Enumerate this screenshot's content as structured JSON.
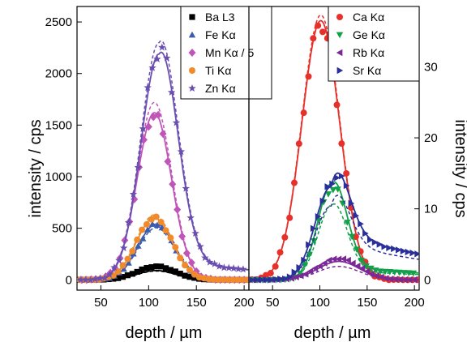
{
  "chart_data": [
    {
      "type": "scatter",
      "panel": "left",
      "xlabel": "depth / µm",
      "ylabel": "intensity / cps",
      "xlim": [
        25,
        205
      ],
      "ylim": [
        -100,
        2650
      ],
      "xticks": [
        50,
        100,
        150,
        200
      ],
      "yticks": [
        0,
        500,
        1000,
        1500,
        2000,
        2500
      ],
      "legend_position": "top-center",
      "series": [
        {
          "name": "Ba L3",
          "color": "#000000",
          "marker": "square",
          "center": 108,
          "width": 20,
          "tail": 0.0,
          "peak_pts": 130,
          "peak_fit": 90,
          "peak_fit2": 85
        },
        {
          "name": "Fe Kα",
          "color": "#3a5bb0",
          "marker": "triangle-up",
          "center": 108,
          "width": 19,
          "tail": 0.0,
          "peak_pts": 540,
          "peak_fit": 540,
          "peak_fit2": 505
        },
        {
          "name": "Mn Kα / 5",
          "color": "#c054b8",
          "marker": "diamond",
          "center": 106,
          "width": 18,
          "tail": 0.0,
          "peak_pts": 1600,
          "peak_fit": 1620,
          "peak_fit2": 1720
        },
        {
          "name": "Ti Kα",
          "color": "#f08a2a",
          "marker": "circle",
          "center": 106,
          "width": 19,
          "tail": 0.0,
          "peak_pts": 600,
          "peak_fit": 600,
          "peak_fit2": 630
        },
        {
          "name": "Zn Kα",
          "color": "#6a4fb0",
          "marker": "star",
          "center": 111,
          "width": 19,
          "tail": 0.08,
          "peak_pts": 2400,
          "peak_fit": 2380,
          "peak_fit2": 2500
        }
      ]
    },
    {
      "type": "scatter",
      "panel": "right",
      "xlabel": "depth / µm",
      "ylabel": "intensity / cps",
      "xlim": [
        25,
        205
      ],
      "ylim": [
        -1.45,
        38.5
      ],
      "xticks": [
        50,
        100,
        150,
        200
      ],
      "yticks": [
        0,
        10,
        20,
        30
      ],
      "legend_position": "top-right",
      "series": [
        {
          "name": "Ca Kα",
          "color": "#e8302a",
          "marker": "circle",
          "center": 101,
          "width": 20,
          "tail": 0.0,
          "peak_pts": 36,
          "peak_fit": 36.5,
          "peak_fit2": 37.3
        },
        {
          "name": "Ge Kα",
          "color": "#13a04a",
          "marker": "triangle-down",
          "center": 113,
          "width": 15,
          "tail": 0.12,
          "peak_pts": 14.5,
          "peak_fit": 15.5,
          "peak_fit2": 12.0
        },
        {
          "name": "Rb Kα",
          "color": "#7a2a96",
          "marker": "triangle-left",
          "center": 120,
          "width": 22,
          "tail": 0.0,
          "peak_pts": 3.0,
          "peak_fit": 2.6,
          "peak_fit2": 1.9
        },
        {
          "name": "Sr Kα",
          "color": "#2a2f9a",
          "marker": "triangle-right",
          "center": 112,
          "width": 17,
          "tail": 0.35,
          "peak_pts": 20.0,
          "peak_fit": 20.2,
          "peak_fit2": 16.0
        }
      ]
    }
  ]
}
